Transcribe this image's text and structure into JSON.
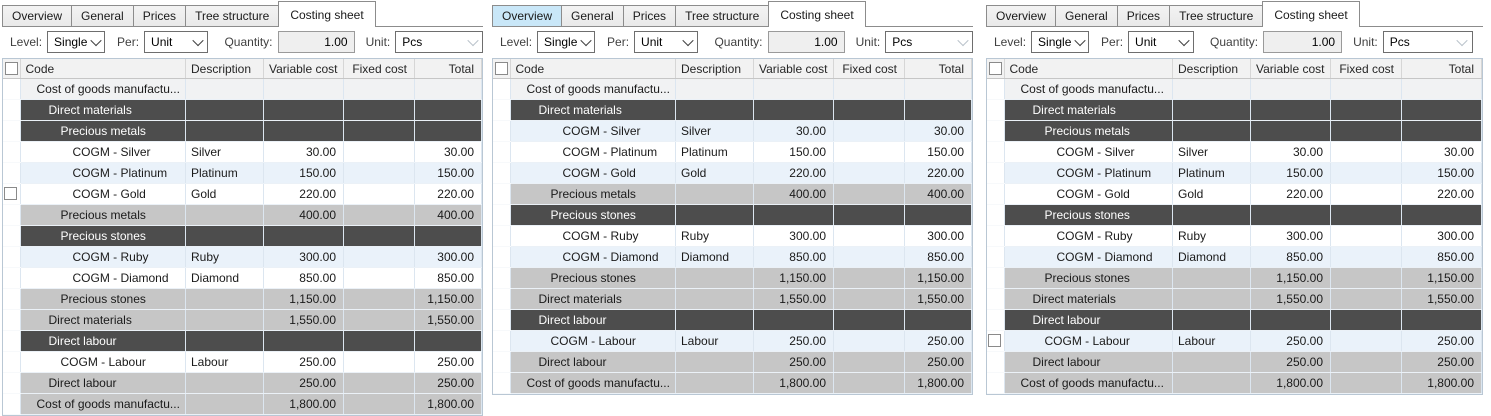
{
  "colors": {
    "tab_hover": "#c9e7f8",
    "tab_inactive": "#f0f0f0",
    "tab_active": "#ffffff",
    "tab_border": "#8c8c8c",
    "dark_group_row": "#4d4d4d",
    "subtotal_row": "#c6c6c6",
    "alt_row": "#eaf2fa",
    "root_group_row": "#f1f2f3",
    "header_row": "#f2f2f2",
    "grid_border": "#b9c7d4",
    "disabled_field": "#efefef"
  },
  "icons": {
    "combo_arrow": "chevron-down",
    "row_selector": "checkbox"
  },
  "panels": [
    {
      "tabs": [
        {
          "label": "Overview",
          "state": "normal"
        },
        {
          "label": "General",
          "state": "normal"
        },
        {
          "label": "Prices",
          "state": "normal"
        },
        {
          "label": "Tree structure",
          "state": "normal"
        },
        {
          "label": "Costing sheet",
          "state": "active"
        }
      ],
      "toolbar": {
        "level_label": "Level:",
        "level_value": "Single",
        "per_label": "Per:",
        "per_value": "Unit",
        "quantity_label": "Quantity:",
        "quantity_value": "1.00",
        "unit_label": "Unit:",
        "unit_value": "Pcs"
      },
      "columns": [
        "Code",
        "Description",
        "Variable cost",
        "Fixed cost",
        "Total"
      ],
      "rows": [
        {
          "code": "Cost of goods manufactu...",
          "description": "",
          "variable_cost": "",
          "fixed_cost": "",
          "total": "",
          "type": "root-group",
          "indent": 0,
          "alt": false,
          "hover_checkbox": false
        },
        {
          "code": "Direct materials",
          "description": "",
          "variable_cost": "",
          "fixed_cost": "",
          "total": "",
          "type": "dark-group",
          "indent": 1,
          "alt": false,
          "hover_checkbox": false
        },
        {
          "code": "Precious metals",
          "description": "",
          "variable_cost": "",
          "fixed_cost": "",
          "total": "",
          "type": "dark-group",
          "indent": 2,
          "alt": false,
          "hover_checkbox": false
        },
        {
          "code": "COGM - Silver",
          "description": "Silver",
          "variable_cost": "30.00",
          "fixed_cost": "",
          "total": "30.00",
          "type": "item",
          "indent": 3,
          "alt": false,
          "hover_checkbox": false
        },
        {
          "code": "COGM - Platinum",
          "description": "Platinum",
          "variable_cost": "150.00",
          "fixed_cost": "",
          "total": "150.00",
          "type": "item",
          "indent": 3,
          "alt": true,
          "hover_checkbox": false
        },
        {
          "code": "COGM - Gold",
          "description": "Gold",
          "variable_cost": "220.00",
          "fixed_cost": "",
          "total": "220.00",
          "type": "item",
          "indent": 3,
          "alt": false,
          "hover_checkbox": true
        },
        {
          "code": "Precious metals",
          "description": "",
          "variable_cost": "400.00",
          "fixed_cost": "",
          "total": "400.00",
          "type": "subtotal",
          "indent": 2,
          "alt": false,
          "hover_checkbox": false
        },
        {
          "code": "Precious stones",
          "description": "",
          "variable_cost": "",
          "fixed_cost": "",
          "total": "",
          "type": "dark-group",
          "indent": 2,
          "alt": false,
          "hover_checkbox": false
        },
        {
          "code": "COGM - Ruby",
          "description": "Ruby",
          "variable_cost": "300.00",
          "fixed_cost": "",
          "total": "300.00",
          "type": "item",
          "indent": 3,
          "alt": true,
          "hover_checkbox": false
        },
        {
          "code": "COGM - Diamond",
          "description": "Diamond",
          "variable_cost": "850.00",
          "fixed_cost": "",
          "total": "850.00",
          "type": "item",
          "indent": 3,
          "alt": false,
          "hover_checkbox": false
        },
        {
          "code": "Precious stones",
          "description": "",
          "variable_cost": "1,150.00",
          "fixed_cost": "",
          "total": "1,150.00",
          "type": "subtotal",
          "indent": 2,
          "alt": false,
          "hover_checkbox": false
        },
        {
          "code": "Direct materials",
          "description": "",
          "variable_cost": "1,550.00",
          "fixed_cost": "",
          "total": "1,550.00",
          "type": "subtotal",
          "indent": 1,
          "alt": false,
          "hover_checkbox": false
        },
        {
          "code": "Direct labour",
          "description": "",
          "variable_cost": "",
          "fixed_cost": "",
          "total": "",
          "type": "dark-group",
          "indent": 1,
          "alt": false,
          "hover_checkbox": false
        },
        {
          "code": "COGM - Labour",
          "description": "Labour",
          "variable_cost": "250.00",
          "fixed_cost": "",
          "total": "250.00",
          "type": "item",
          "indent": 2,
          "alt": false,
          "hover_checkbox": false
        },
        {
          "code": "Direct labour",
          "description": "",
          "variable_cost": "250.00",
          "fixed_cost": "",
          "total": "250.00",
          "type": "subtotal",
          "indent": 1,
          "alt": false,
          "hover_checkbox": false
        },
        {
          "code": "Cost of goods manufactu...",
          "description": "",
          "variable_cost": "1,800.00",
          "fixed_cost": "",
          "total": "1,800.00",
          "type": "subtotal",
          "indent": 0,
          "alt": false,
          "hover_checkbox": false
        }
      ]
    },
    {
      "tabs": [
        {
          "label": "Overview",
          "state": "hover"
        },
        {
          "label": "General",
          "state": "normal"
        },
        {
          "label": "Prices",
          "state": "normal"
        },
        {
          "label": "Tree structure",
          "state": "normal"
        },
        {
          "label": "Costing sheet",
          "state": "active"
        }
      ],
      "toolbar": {
        "level_label": "Level:",
        "level_value": "Single",
        "per_label": "Per:",
        "per_value": "Unit",
        "quantity_label": "Quantity:",
        "quantity_value": "1.00",
        "unit_label": "Unit:",
        "unit_value": "Pcs"
      },
      "columns": [
        "Code",
        "Description",
        "Variable cost",
        "Fixed cost",
        "Total"
      ],
      "rows": [
        {
          "code": "Cost of goods manufactu...",
          "description": "",
          "variable_cost": "",
          "fixed_cost": "",
          "total": "",
          "type": "root-group",
          "indent": 0,
          "alt": false,
          "hover_checkbox": false
        },
        {
          "code": "Direct materials",
          "description": "",
          "variable_cost": "",
          "fixed_cost": "",
          "total": "",
          "type": "dark-group",
          "indent": 1,
          "alt": false,
          "hover_checkbox": false
        },
        {
          "code": "COGM - Silver",
          "description": "Silver",
          "variable_cost": "30.00",
          "fixed_cost": "",
          "total": "30.00",
          "type": "item",
          "indent": 3,
          "alt": true,
          "hover_checkbox": false
        },
        {
          "code": "COGM - Platinum",
          "description": "Platinum",
          "variable_cost": "150.00",
          "fixed_cost": "",
          "total": "150.00",
          "type": "item",
          "indent": 3,
          "alt": false,
          "hover_checkbox": false
        },
        {
          "code": "COGM - Gold",
          "description": "Gold",
          "variable_cost": "220.00",
          "fixed_cost": "",
          "total": "220.00",
          "type": "item",
          "indent": 3,
          "alt": true,
          "hover_checkbox": false
        },
        {
          "code": "Precious metals",
          "description": "",
          "variable_cost": "400.00",
          "fixed_cost": "",
          "total": "400.00",
          "type": "subtotal",
          "indent": 2,
          "alt": false,
          "hover_checkbox": false
        },
        {
          "code": "Precious stones",
          "description": "",
          "variable_cost": "",
          "fixed_cost": "",
          "total": "",
          "type": "dark-group",
          "indent": 2,
          "alt": false,
          "hover_checkbox": false
        },
        {
          "code": "COGM - Ruby",
          "description": "Ruby",
          "variable_cost": "300.00",
          "fixed_cost": "",
          "total": "300.00",
          "type": "item",
          "indent": 3,
          "alt": false,
          "hover_checkbox": false
        },
        {
          "code": "COGM - Diamond",
          "description": "Diamond",
          "variable_cost": "850.00",
          "fixed_cost": "",
          "total": "850.00",
          "type": "item",
          "indent": 3,
          "alt": true,
          "hover_checkbox": false
        },
        {
          "code": "Precious stones",
          "description": "",
          "variable_cost": "1,150.00",
          "fixed_cost": "",
          "total": "1,150.00",
          "type": "subtotal",
          "indent": 2,
          "alt": false,
          "hover_checkbox": false
        },
        {
          "code": "Direct materials",
          "description": "",
          "variable_cost": "1,550.00",
          "fixed_cost": "",
          "total": "1,550.00",
          "type": "subtotal",
          "indent": 1,
          "alt": false,
          "hover_checkbox": false
        },
        {
          "code": "Direct labour",
          "description": "",
          "variable_cost": "",
          "fixed_cost": "",
          "total": "",
          "type": "dark-group",
          "indent": 1,
          "alt": false,
          "hover_checkbox": false
        },
        {
          "code": "COGM - Labour",
          "description": "Labour",
          "variable_cost": "250.00",
          "fixed_cost": "",
          "total": "250.00",
          "type": "item",
          "indent": 2,
          "alt": true,
          "hover_checkbox": false
        },
        {
          "code": "Direct labour",
          "description": "",
          "variable_cost": "250.00",
          "fixed_cost": "",
          "total": "250.00",
          "type": "subtotal",
          "indent": 1,
          "alt": false,
          "hover_checkbox": false
        },
        {
          "code": "Cost of goods manufactu...",
          "description": "",
          "variable_cost": "1,800.00",
          "fixed_cost": "",
          "total": "1,800.00",
          "type": "subtotal",
          "indent": 0,
          "alt": false,
          "hover_checkbox": false
        }
      ]
    },
    {
      "tabs": [
        {
          "label": "Overview",
          "state": "normal"
        },
        {
          "label": "General",
          "state": "normal"
        },
        {
          "label": "Prices",
          "state": "normal"
        },
        {
          "label": "Tree structure",
          "state": "normal"
        },
        {
          "label": "Costing sheet",
          "state": "active"
        }
      ],
      "toolbar": {
        "level_label": "Level:",
        "level_value": "Single",
        "per_label": "Per:",
        "per_value": "Unit",
        "quantity_label": "Quantity:",
        "quantity_value": "1.00",
        "unit_label": "Unit:",
        "unit_value": "Pcs"
      },
      "columns": [
        "Code",
        "Description",
        "Variable cost",
        "Fixed cost",
        "Total"
      ],
      "rows": [
        {
          "code": "Cost of goods manufactu...",
          "description": "",
          "variable_cost": "",
          "fixed_cost": "",
          "total": "",
          "type": "root-group",
          "indent": 0,
          "alt": false,
          "hover_checkbox": false
        },
        {
          "code": "Direct materials",
          "description": "",
          "variable_cost": "",
          "fixed_cost": "",
          "total": "",
          "type": "dark-group",
          "indent": 1,
          "alt": false,
          "hover_checkbox": false
        },
        {
          "code": "Precious metals",
          "description": "",
          "variable_cost": "",
          "fixed_cost": "",
          "total": "",
          "type": "dark-group",
          "indent": 2,
          "alt": false,
          "hover_checkbox": false
        },
        {
          "code": "COGM - Silver",
          "description": "Silver",
          "variable_cost": "30.00",
          "fixed_cost": "",
          "total": "30.00",
          "type": "item",
          "indent": 3,
          "alt": false,
          "hover_checkbox": false
        },
        {
          "code": "COGM - Platinum",
          "description": "Platinum",
          "variable_cost": "150.00",
          "fixed_cost": "",
          "total": "150.00",
          "type": "item",
          "indent": 3,
          "alt": true,
          "hover_checkbox": false
        },
        {
          "code": "COGM - Gold",
          "description": "Gold",
          "variable_cost": "220.00",
          "fixed_cost": "",
          "total": "220.00",
          "type": "item",
          "indent": 3,
          "alt": false,
          "hover_checkbox": false
        },
        {
          "code": "Precious stones",
          "description": "",
          "variable_cost": "",
          "fixed_cost": "",
          "total": "",
          "type": "dark-group",
          "indent": 2,
          "alt": false,
          "hover_checkbox": false
        },
        {
          "code": "COGM - Ruby",
          "description": "Ruby",
          "variable_cost": "300.00",
          "fixed_cost": "",
          "total": "300.00",
          "type": "item",
          "indent": 3,
          "alt": false,
          "hover_checkbox": false
        },
        {
          "code": "COGM - Diamond",
          "description": "Diamond",
          "variable_cost": "850.00",
          "fixed_cost": "",
          "total": "850.00",
          "type": "item",
          "indent": 3,
          "alt": true,
          "hover_checkbox": false
        },
        {
          "code": "Precious stones",
          "description": "",
          "variable_cost": "1,150.00",
          "fixed_cost": "",
          "total": "1,150.00",
          "type": "subtotal",
          "indent": 2,
          "alt": false,
          "hover_checkbox": false
        },
        {
          "code": "Direct materials",
          "description": "",
          "variable_cost": "1,550.00",
          "fixed_cost": "",
          "total": "1,550.00",
          "type": "subtotal",
          "indent": 1,
          "alt": false,
          "hover_checkbox": false
        },
        {
          "code": "Direct labour",
          "description": "",
          "variable_cost": "",
          "fixed_cost": "",
          "total": "",
          "type": "dark-group",
          "indent": 1,
          "alt": false,
          "hover_checkbox": false
        },
        {
          "code": "COGM - Labour",
          "description": "Labour",
          "variable_cost": "250.00",
          "fixed_cost": "",
          "total": "250.00",
          "type": "item",
          "indent": 2,
          "alt": true,
          "hover_checkbox": true
        },
        {
          "code": "Direct labour",
          "description": "",
          "variable_cost": "250.00",
          "fixed_cost": "",
          "total": "250.00",
          "type": "subtotal",
          "indent": 1,
          "alt": false,
          "hover_checkbox": false
        },
        {
          "code": "Cost of goods manufactu...",
          "description": "",
          "variable_cost": "1,800.00",
          "fixed_cost": "",
          "total": "1,800.00",
          "type": "subtotal",
          "indent": 0,
          "alt": false,
          "hover_checkbox": false
        }
      ]
    }
  ]
}
